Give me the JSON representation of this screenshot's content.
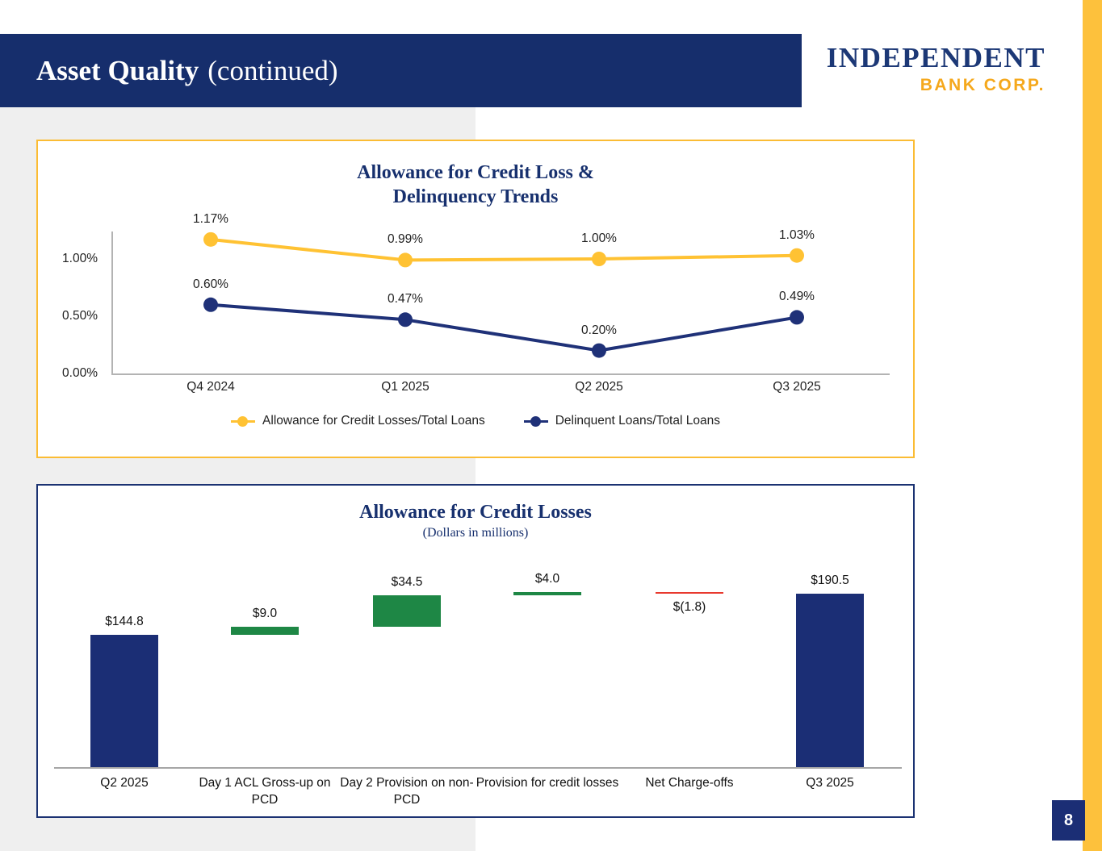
{
  "slide": {
    "title_bold": "Asset Quality",
    "title_rest": "(continued)",
    "page_number": "8"
  },
  "logo": {
    "line1": "INDEPENDENT",
    "line2": "BANK CORP."
  },
  "colors": {
    "navy_bar": "#162E6C",
    "navy_series": "#1F3178",
    "gold": "#FFC233",
    "strip_gold": "#FDC13C",
    "green": "#1E8745",
    "red": "#E8392E",
    "gray_band": "#EFEFEF"
  },
  "chart_data": [
    {
      "type": "line",
      "title_line1": "Allowance for Credit Loss &",
      "title_line2": "Delinquency Trends",
      "categories": [
        "Q4 2024",
        "Q1 2025",
        "Q2 2025",
        "Q3 2025"
      ],
      "y_ticks": [
        {
          "label": "1.00%",
          "value": 1.0
        },
        {
          "label": "0.50%",
          "value": 0.5
        },
        {
          "label": "0.00%",
          "value": 0.0
        }
      ],
      "ylim": [
        0,
        1.3
      ],
      "grid": false,
      "legend_position": "bottom",
      "series": [
        {
          "name": "Allowance for Credit Losses/Total Loans",
          "color": "#FFC233",
          "values": [
            1.17,
            0.99,
            1.0,
            1.03
          ],
          "labels": [
            "1.17%",
            "0.99%",
            "1.00%",
            "1.03%"
          ]
        },
        {
          "name": "Delinquent Loans/Total Loans",
          "color": "#1F3178",
          "values": [
            0.6,
            0.47,
            0.2,
            0.49
          ],
          "labels": [
            "0.60%",
            "0.47%",
            "0.20%",
            "0.49%"
          ]
        }
      ]
    },
    {
      "type": "waterfall",
      "title": "Allowance for Credit Losses",
      "subtitle": "(Dollars in millions)",
      "colors": {
        "total": "#1B2E75",
        "increase": "#1E8745",
        "decrease": "#E8392E"
      },
      "bars": [
        {
          "category": "Q2 2025",
          "label": "$144.8",
          "value": 144.8,
          "kind": "total"
        },
        {
          "category": "Day 1 ACL Gross-up on PCD",
          "label": "$9.0",
          "value": 9.0,
          "kind": "increase"
        },
        {
          "category": "Day 2 Provision on non-PCD",
          "label": "$34.5",
          "value": 34.5,
          "kind": "increase"
        },
        {
          "category": "Provision for credit losses",
          "label": "$4.0",
          "value": 4.0,
          "kind": "increase"
        },
        {
          "category": "Net Charge-offs",
          "label": "$(1.8)",
          "value": -1.8,
          "kind": "decrease",
          "label_below": true
        },
        {
          "category": "Q3 2025",
          "label": "$190.5",
          "value": 190.5,
          "kind": "total"
        }
      ]
    }
  ]
}
